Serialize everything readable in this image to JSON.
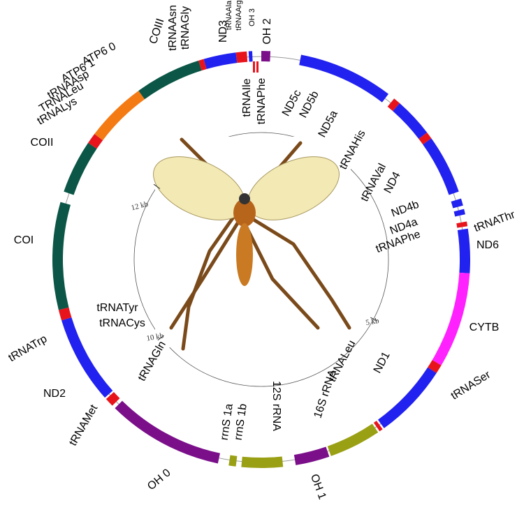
{
  "labels": [
    "tRNAAsn",
    "tRNAGly",
    "COIII",
    "ND3",
    "tRNAAla",
    "tRNAArg",
    "OH 3",
    "OH 2",
    "tRNAIle",
    "tRNAPhe",
    "ND5c",
    "ND5b",
    "ND5a",
    "tRNAHis",
    "tRNAVal",
    "ND4",
    "ND4b",
    "ND4a",
    "tRNAPhe",
    "tRNAThr",
    "ND6",
    "CYTB",
    "tRNASer",
    "ND1",
    "tRNALeu",
    "16S rRNA",
    "12S rRNA",
    "rrnS 1b",
    "rrnS 1a",
    "OH 1",
    "OH 0",
    "tRNAGln",
    "tRNAMet",
    "ND2",
    "tRNATrp",
    "tRNATyr",
    "tRNACys",
    "COI",
    "COII",
    "tRNALys",
    "TRNALeu",
    "tRNAAsp",
    "ATP6 1",
    "ATP6 0"
  ],
  "scale": [
    "12 kb",
    "10 kb",
    "5 kb"
  ]
}
